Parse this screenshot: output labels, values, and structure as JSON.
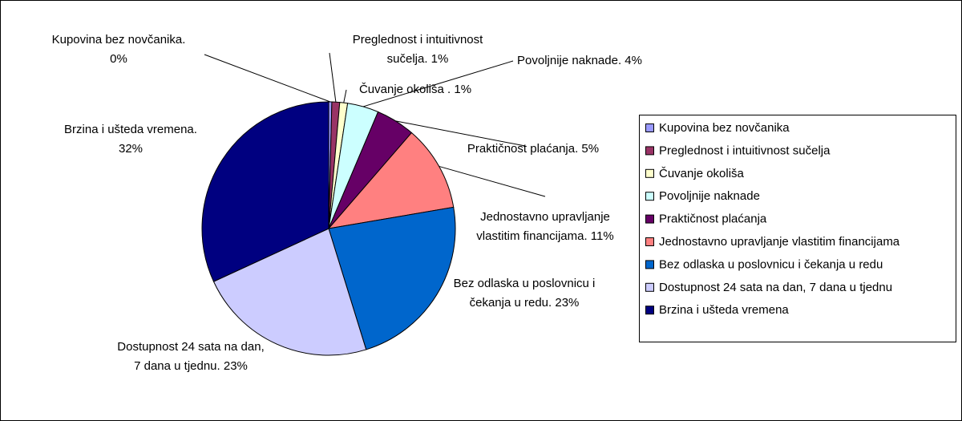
{
  "chart_data": {
    "type": "pie",
    "categories": [
      "Kupovina bez novčanika",
      "Preglednost i intuitivnost sučelja",
      "Čuvanje okoliša",
      "Povoljnije naknade",
      "Praktičnost plaćanja",
      "Jednostavno upravljanje vlastitim financijama",
      "Bez odlaska u poslovnicu i čekanja u redu",
      "Dostupnost 24 sata na dan, 7 dana u tjednu",
      "Brzina i ušteda vremena"
    ],
    "values": [
      0.4,
      1,
      1,
      4,
      5,
      11,
      23,
      23,
      32
    ],
    "value_labels": [
      [
        "Kupovina bez novčanika.",
        "0%"
      ],
      [
        "Preglednost i intuitivnost",
        "sučelja. 1%"
      ],
      [
        "Čuvanje okoliša . 1%"
      ],
      [
        "Povoljnije naknade. 4%"
      ],
      [
        "Praktičnost plaćanja. 5%"
      ],
      [
        "Jednostavno upravljanje",
        "vlastitim financijama. 11%"
      ],
      [
        "Bez odlaska u poslovnicu i",
        "čekanja u redu. 23%"
      ],
      [
        "Dostupnost 24 sata na dan,",
        "7 dana u tjednu. 23%"
      ],
      [
        "Brzina i ušteda vremena.",
        "32%"
      ]
    ],
    "colors": [
      "#9999ff",
      "#993366",
      "#ffffcc",
      "#ccffff",
      "#660066",
      "#ff8080",
      "#0066cc",
      "#ccccff",
      "#000080"
    ],
    "legend": "right"
  }
}
